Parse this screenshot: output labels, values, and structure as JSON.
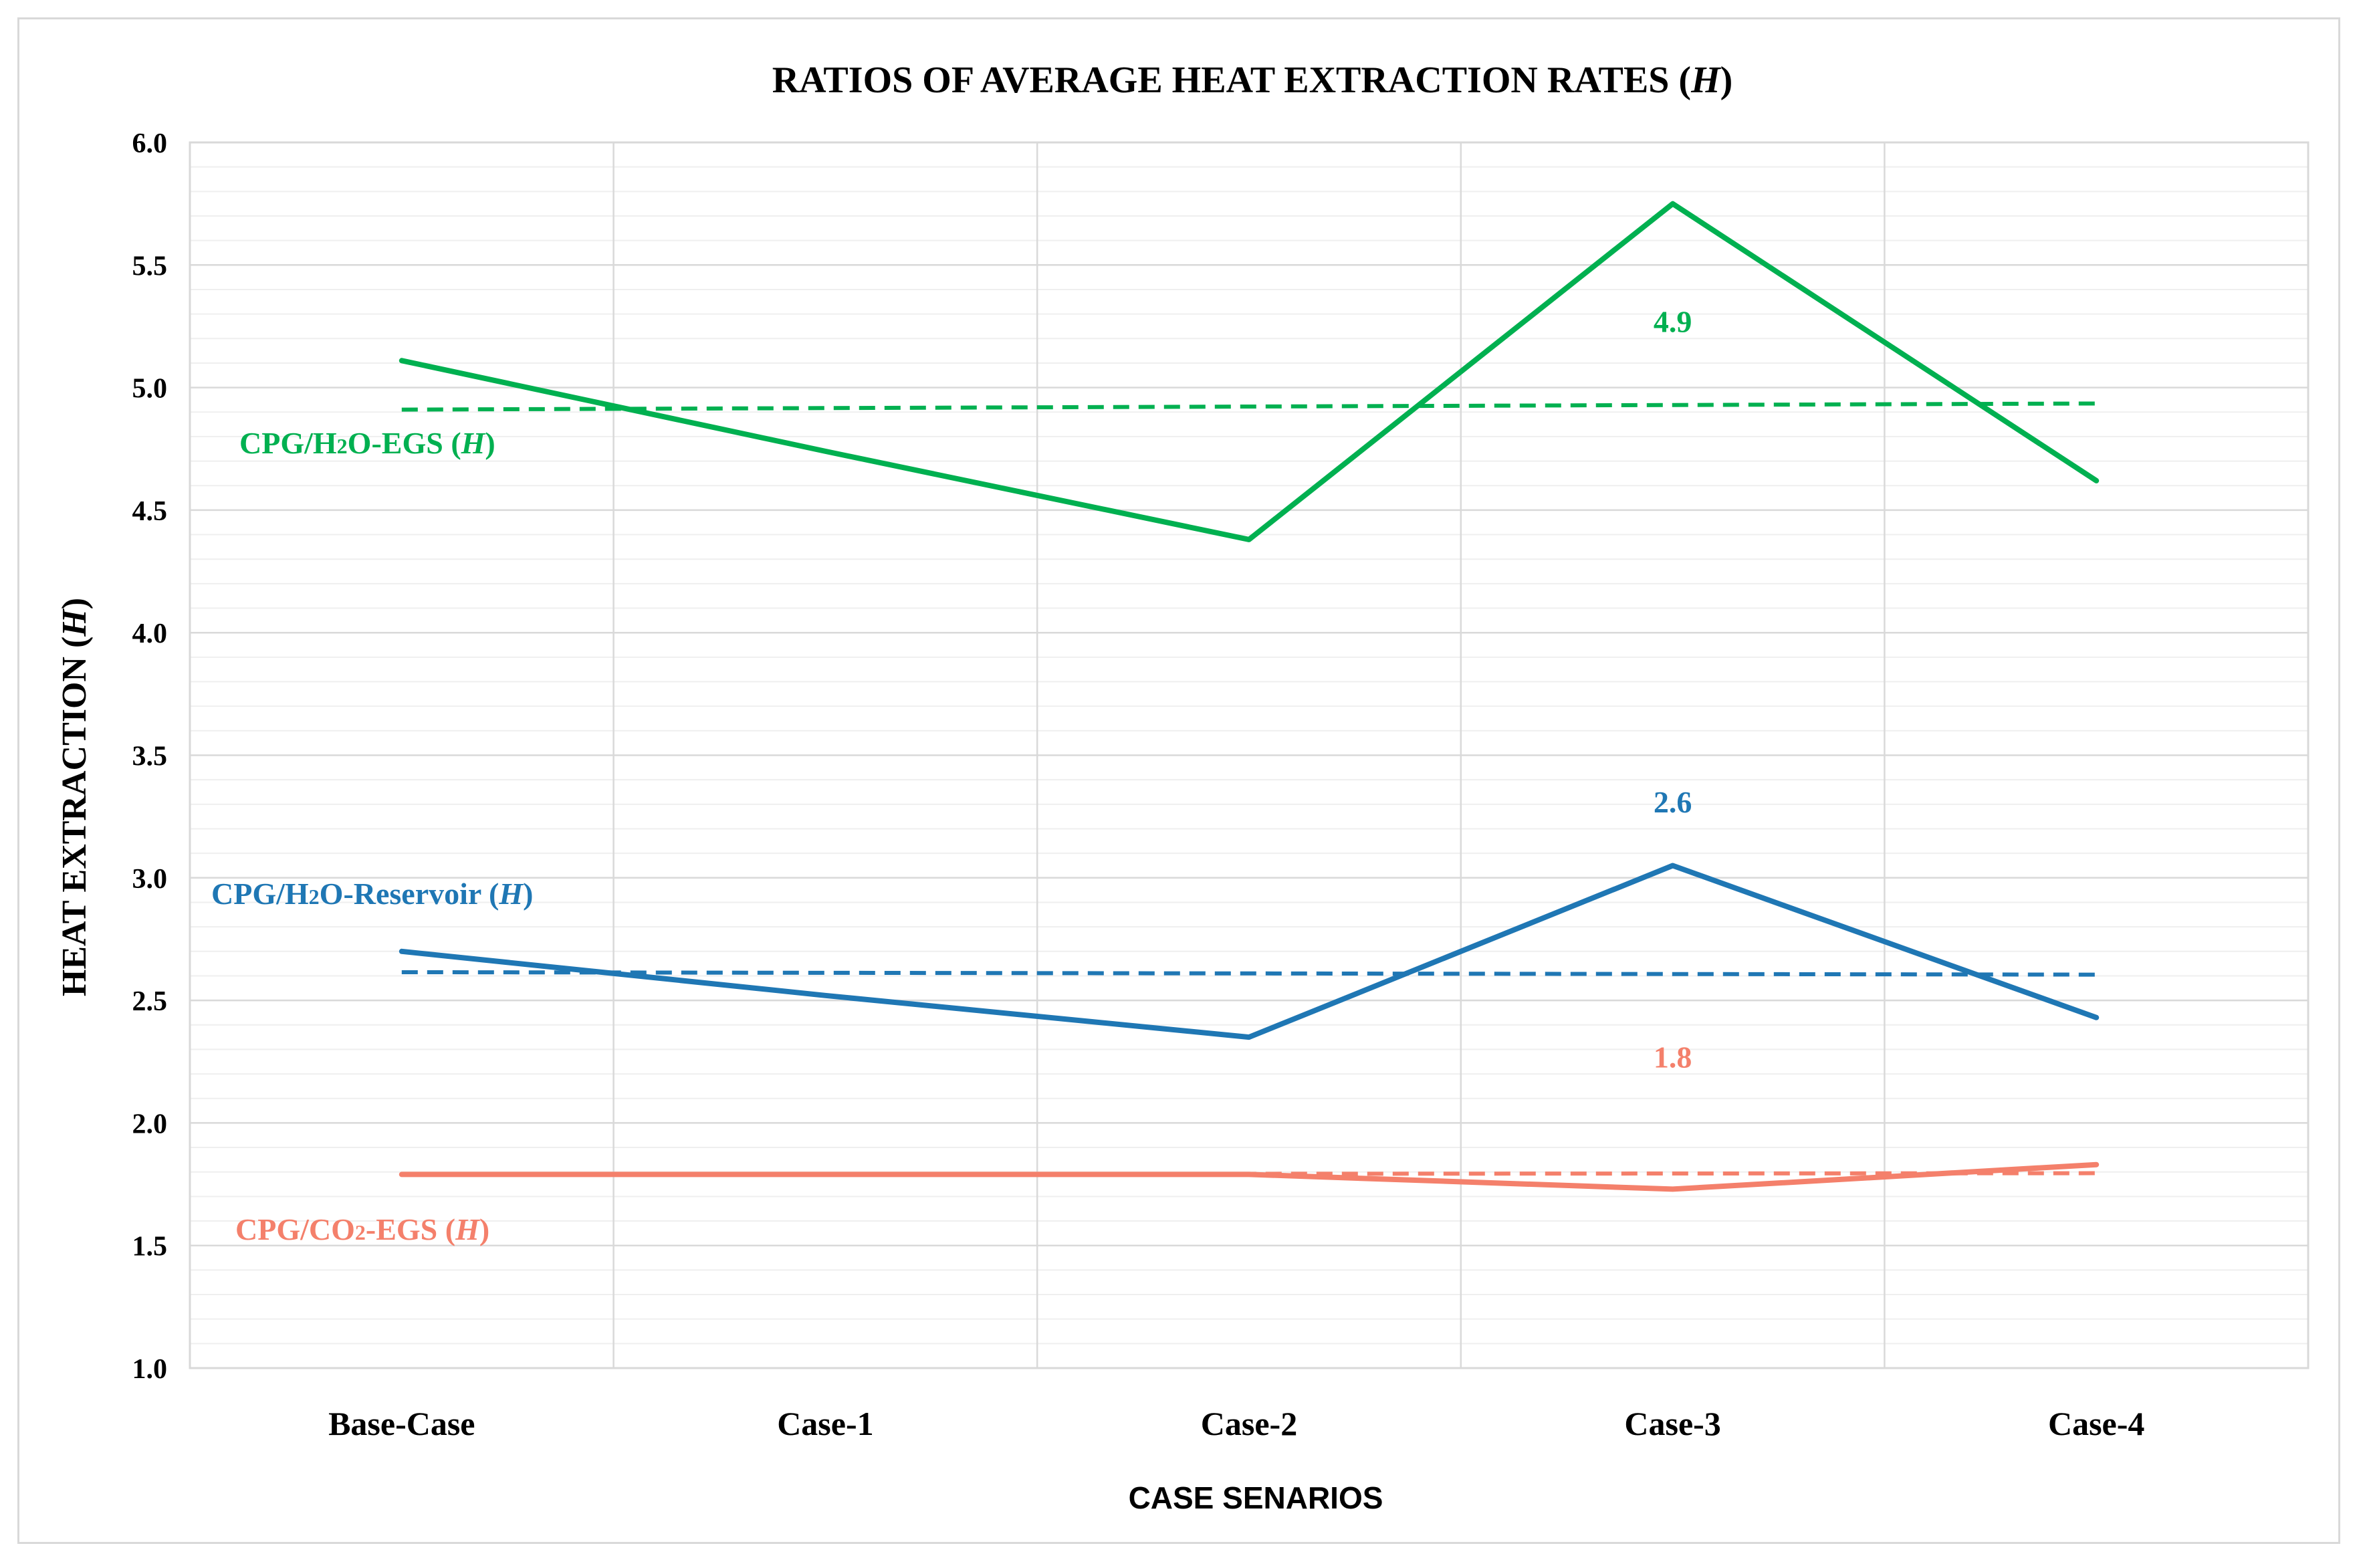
{
  "chart_data": {
    "type": "line",
    "title": "RATIOS OF AVERAGE HEAT EXTRACTION RATES (H)",
    "title_main": "RATIOS OF AVERAGE HEAT EXTRACTION RATES (",
    "title_italic": "H",
    "title_close": ")",
    "xlabel": "CASE SENARIOS",
    "ylabel_main": "HEAT EXTRACTION (",
    "ylabel_italic": "H",
    "ylabel_close": ")",
    "categories": [
      "Base-Case",
      "Case-1",
      "Case-2",
      "Case-3",
      "Case-4"
    ],
    "ylim": [
      1.0,
      6.0
    ],
    "yticks": [
      "1.0",
      "1.5",
      "2.0",
      "2.5",
      "3.0",
      "3.5",
      "4.0",
      "4.5",
      "5.0",
      "5.5",
      "6.0"
    ],
    "grid": true,
    "legend": "none",
    "series": [
      {
        "key": "h2o_egs",
        "label_parts": [
          "CPG/H",
          "2",
          "O-EGS (",
          "H",
          ")"
        ],
        "color": "#00b050",
        "values": [
          5.11,
          4.74,
          4.38,
          5.75,
          4.62
        ],
        "trend": [
          4.91,
          4.935
        ],
        "annotation": "4.9",
        "annotation_at": {
          "category": "Case-3",
          "y": 5.27
        }
      },
      {
        "key": "h2o_reservoir",
        "label_parts": [
          "CPG/H",
          "2",
          "O-Reservoir (",
          "H",
          ")"
        ],
        "color": "#1f77b4",
        "values": [
          2.7,
          2.52,
          2.35,
          3.05,
          2.43
        ],
        "trend": [
          2.615,
          2.605
        ],
        "annotation": "2.6",
        "annotation_at": {
          "category": "Case-3",
          "y": 3.31
        }
      },
      {
        "key": "co2_egs",
        "label_parts": [
          "CPG/CO",
          "2",
          "-EGS (",
          "H",
          ")"
        ],
        "color": "#f4806b",
        "values": [
          1.79,
          1.79,
          1.79,
          1.73,
          1.83
        ],
        "trend": [
          1.79,
          1.795
        ],
        "annotation": "1.8",
        "annotation_at": {
          "category": "Case-3",
          "y": 2.27
        }
      }
    ]
  }
}
